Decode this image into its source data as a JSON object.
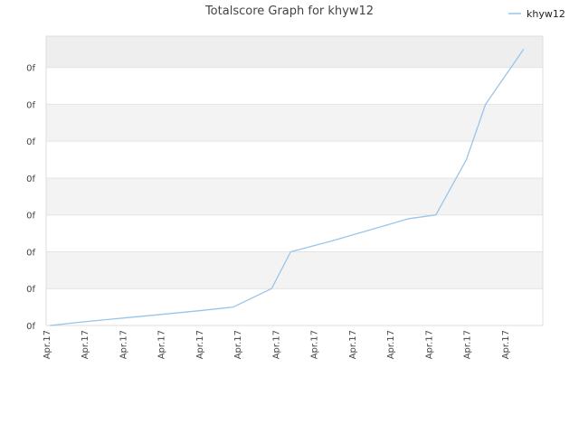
{
  "chart_data": {
    "type": "line",
    "title": "Totalscore Graph for khyw12",
    "xlabel": "",
    "ylabel": "",
    "x_ticks": [
      "Apr.17",
      "Apr.17",
      "Apr.17",
      "Apr.17",
      "Apr.17",
      "Apr.17",
      "Apr.17",
      "Apr.17",
      "Apr.17",
      "Apr.17",
      "Apr.17",
      "Apr.17",
      "Apr.17"
    ],
    "y_ticks": [
      "0f",
      "0f",
      "0f",
      "0f",
      "0f",
      "0f",
      "0f",
      "0f"
    ],
    "ylim": [
      0,
      7.85
    ],
    "xlim": [
      0,
      13
    ],
    "grid": true,
    "legend_position": "top-right",
    "series": [
      {
        "name": "khyw12",
        "color": "#99c5ea",
        "x": [
          0.1,
          1,
          2,
          3,
          4,
          4.9,
          5.9,
          6.4,
          7.5,
          8.5,
          9.5,
          10.2,
          11,
          11.5,
          12.5
        ],
        "y": [
          0,
          0.1,
          0.2,
          0.3,
          0.4,
          0.5,
          1.0,
          2.0,
          2.3,
          2.6,
          2.9,
          3.0,
          4.5,
          6.0,
          7.5
        ]
      }
    ]
  }
}
